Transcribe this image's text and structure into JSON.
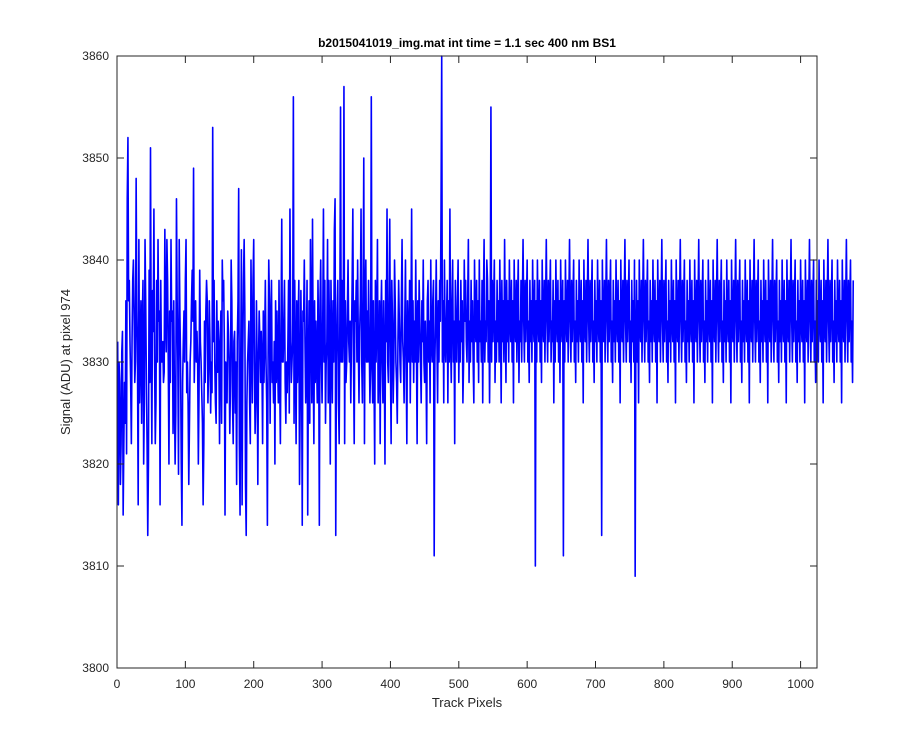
{
  "chart_data": {
    "type": "line",
    "title": "b2015041019_img.mat int time = 1.1 sec  400 nm BS1",
    "xlabel": "Track Pixels",
    "ylabel": "Signal (ADU) at pixel 974",
    "xlim": [
      0,
      1024
    ],
    "ylim": [
      3800,
      3860
    ],
    "xticks": [
      0,
      100,
      200,
      300,
      400,
      500,
      600,
      700,
      800,
      900,
      1000
    ],
    "yticks": [
      3800,
      3810,
      3820,
      3830,
      3840,
      3850,
      3860
    ],
    "grid": false,
    "series": [
      {
        "color": "#0000ff",
        "x_start": 1,
        "x_step": 1,
        "values": [
          3832,
          3816,
          3830,
          3828,
          3818,
          3822,
          3831,
          3833,
          3815,
          3822,
          3828,
          3824,
          3836,
          3821,
          3846,
          3852,
          3836,
          3838,
          3832,
          3828,
          3822,
          3832,
          3838,
          3840,
          3835,
          3828,
          3830,
          3848,
          3835,
          3830,
          3816,
          3842,
          3826,
          3831,
          3836,
          3824,
          3834,
          3838,
          3820,
          3826,
          3842,
          3836,
          3828,
          3822,
          3813,
          3820,
          3839,
          3828,
          3851,
          3832,
          3822,
          3837,
          3833,
          3845,
          3830,
          3822,
          3826,
          3838,
          3830,
          3842,
          3834,
          3835,
          3816,
          3838,
          3830,
          3830,
          3832,
          3828,
          3829,
          3843,
          3834,
          3831,
          3842,
          3838,
          3830,
          3820,
          3835,
          3828,
          3842,
          3834,
          3835,
          3823,
          3836,
          3827,
          3820,
          3825,
          3846,
          3836,
          3830,
          3819,
          3842,
          3835,
          3830,
          3820,
          3814,
          3828,
          3832,
          3835,
          3830,
          3838,
          3842,
          3827,
          3830,
          3826,
          3818,
          3824,
          3830,
          3832,
          3836,
          3839,
          3834,
          3849,
          3828,
          3832,
          3836,
          3830,
          3833,
          3830,
          3820,
          3827,
          3839,
          3832,
          3830,
          3827,
          3824,
          3816,
          3822,
          3834,
          3828,
          3835,
          3838,
          3836,
          3826,
          3829,
          3836,
          3832,
          3825,
          3830,
          3827,
          3853,
          3832,
          3838,
          3830,
          3826,
          3824,
          3836,
          3829,
          3834,
          3831,
          3822,
          3832,
          3835,
          3824,
          3840,
          3836,
          3838,
          3832,
          3815,
          3830,
          3828,
          3826,
          3835,
          3833,
          3830,
          3823,
          3828,
          3840,
          3836,
          3826,
          3822,
          3832,
          3833,
          3825,
          3830,
          3818,
          3832,
          3836,
          3847,
          3822,
          3815,
          3830,
          3841,
          3816,
          3830,
          3838,
          3842,
          3835,
          3818,
          3813,
          3826,
          3830,
          3832,
          3834,
          3826,
          3822,
          3840,
          3832,
          3826,
          3838,
          3842,
          3830,
          3823,
          3826,
          3836,
          3830,
          3818,
          3830,
          3835,
          3832,
          3828,
          3833,
          3830,
          3822,
          3835,
          3828,
          3832,
          3838,
          3830,
          3826,
          3814,
          3830,
          3840,
          3836,
          3824,
          3834,
          3838,
          3828,
          3830,
          3826,
          3832,
          3820,
          3836,
          3828,
          3835,
          3830,
          3826,
          3838,
          3828,
          3822,
          3834,
          3844,
          3830,
          3830,
          3834,
          3838,
          3828,
          3824,
          3830,
          3827,
          3832,
          3838,
          3825,
          3845,
          3834,
          3828,
          3830,
          3832,
          3856,
          3824,
          3838,
          3830,
          3822,
          3836,
          3828,
          3834,
          3838,
          3818,
          3826,
          3837,
          3830,
          3814,
          3835,
          3834,
          3840,
          3832,
          3826,
          3830,
          3838,
          3815,
          3830,
          3836,
          3824,
          3842,
          3834,
          3826,
          3844,
          3830,
          3822,
          3836,
          3828,
          3834,
          3830,
          3826,
          3838,
          3832,
          3814,
          3836,
          3840,
          3830,
          3826,
          3834,
          3845,
          3830,
          3838,
          3824,
          3830,
          3832,
          3842,
          3826,
          3838,
          3832,
          3820,
          3838,
          3832,
          3826,
          3836,
          3830,
          3843,
          3846,
          3813,
          3830,
          3835,
          3838,
          3826,
          3822,
          3834,
          3855,
          3830,
          3838,
          3830,
          3834,
          3857,
          3822,
          3836,
          3828,
          3830,
          3835,
          3840,
          3832,
          3830,
          3834,
          3826,
          3832,
          3838,
          3845,
          3830,
          3822,
          3836,
          3834,
          3838,
          3830,
          3840,
          3832,
          3826,
          3833,
          3836,
          3845,
          3830,
          3826,
          3836,
          3850,
          3822,
          3836,
          3840,
          3830,
          3835,
          3830,
          3838,
          3832,
          3826,
          3830,
          3856,
          3830,
          3826,
          3836,
          3828,
          3820,
          3838,
          3830,
          3834,
          3842,
          3826,
          3830,
          3836,
          3822,
          3834,
          3838,
          3830,
          3826,
          3836,
          3830,
          3820,
          3838,
          3832,
          3845,
          3830,
          3828,
          3836,
          3844,
          3830,
          3822,
          3838,
          3834,
          3826,
          3830,
          3840,
          3836,
          3830,
          3828,
          3824,
          3832,
          3838,
          3834,
          3830,
          3828,
          3836,
          3842,
          3832,
          3830,
          3826,
          3834,
          3840,
          3830,
          3822,
          3836,
          3832,
          3830,
          3838,
          3826,
          3834,
          3845,
          3830,
          3836,
          3828,
          3834,
          3830,
          3840,
          3832,
          3822,
          3836,
          3830,
          3838,
          3834,
          3830,
          3826,
          3836,
          3832,
          3840,
          3830,
          3828,
          3834,
          3830,
          3822,
          3836,
          3838,
          3830,
          3834,
          3826,
          3840,
          3832,
          3830,
          3836,
          3838,
          3811,
          3830,
          3834,
          3840,
          3832,
          3826,
          3836,
          3830,
          3838,
          3834,
          3845,
          3860,
          3830,
          3836,
          3826,
          3840,
          3832,
          3830,
          3834,
          3838,
          3826,
          3836,
          3830,
          3845,
          3832,
          3828,
          3836,
          3840,
          3830,
          3834,
          3822,
          3838,
          3832,
          3830,
          3836,
          3840,
          3828,
          3834,
          3830,
          3838,
          3832,
          3836,
          3826,
          3830,
          3840,
          3834,
          3838,
          3832,
          3830,
          3836,
          3842,
          3828,
          3834,
          3830,
          3838,
          3832,
          3836,
          3830,
          3826,
          3840,
          3834,
          3832,
          3838,
          3830,
          3836,
          3828,
          3840,
          3832,
          3834,
          3830,
          3838,
          3826,
          3836,
          3842,
          3830,
          3834,
          3832,
          3840,
          3838,
          3830,
          3836,
          3826,
          3834,
          3855,
          3830,
          3838,
          3832,
          3836,
          3840,
          3828,
          3834,
          3830,
          3838,
          3832,
          3836,
          3830,
          3840,
          3834,
          3826,
          3838,
          3832,
          3836,
          3830,
          3842,
          3834,
          3828,
          3838,
          3832,
          3836,
          3830,
          3840,
          3834,
          3832,
          3838,
          3830,
          3836,
          3826,
          3840,
          3834,
          3832,
          3838,
          3830,
          3836,
          3840,
          3828,
          3834,
          3832,
          3838,
          3830,
          3836,
          3842,
          3834,
          3830,
          3838,
          3832,
          3836,
          3840,
          3830,
          3834,
          3828,
          3838,
          3832,
          3836,
          3830,
          3840,
          3834,
          3832,
          3838,
          3810,
          3836,
          3830,
          3840,
          3834,
          3832,
          3838,
          3830,
          3836,
          3828,
          3840,
          3834,
          3832,
          3838,
          3830,
          3836,
          3842,
          3834,
          3830,
          3838,
          3832,
          3836,
          3840,
          3830,
          3834,
          3832,
          3838,
          3826,
          3836,
          3830,
          3840,
          3834,
          3832,
          3838,
          3830,
          3836,
          3828,
          3840,
          3834,
          3832,
          3838,
          3811,
          3836,
          3830,
          3840,
          3834,
          3832,
          3838,
          3830,
          3836,
          3842,
          3834,
          3830,
          3838,
          3832,
          3836,
          3840,
          3830,
          3834,
          3828,
          3838,
          3832,
          3836,
          3830,
          3840,
          3834,
          3832,
          3838,
          3830,
          3836,
          3826,
          3840,
          3834,
          3832,
          3838,
          3830,
          3836,
          3842,
          3834,
          3830,
          3838,
          3832,
          3836,
          3840,
          3830,
          3834,
          3828,
          3838,
          3832,
          3836,
          3830,
          3840,
          3834,
          3832,
          3838,
          3830,
          3836,
          3813,
          3840,
          3834,
          3832,
          3838,
          3830,
          3836,
          3842,
          3834,
          3830,
          3838,
          3832,
          3836,
          3840,
          3830,
          3834,
          3828,
          3838,
          3832,
          3836,
          3830,
          3840,
          3834,
          3832,
          3838,
          3830,
          3836,
          3826,
          3840,
          3834,
          3832,
          3838,
          3830,
          3836,
          3842,
          3834,
          3830,
          3838,
          3832,
          3836,
          3840,
          3830,
          3834,
          3828,
          3838,
          3832,
          3836,
          3830,
          3840,
          3809,
          3832,
          3838,
          3830,
          3836,
          3826,
          3840,
          3834,
          3832,
          3838,
          3830,
          3836,
          3842,
          3834,
          3830,
          3838,
          3832,
          3836,
          3840,
          3830,
          3834,
          3828,
          3838,
          3832,
          3836,
          3830,
          3840,
          3834,
          3832,
          3838,
          3830,
          3836,
          3826,
          3840,
          3834,
          3832,
          3838,
          3830,
          3836,
          3842,
          3834,
          3830,
          3838,
          3832,
          3836,
          3840,
          3830,
          3834,
          3828,
          3838,
          3832,
          3836,
          3830,
          3840,
          3834,
          3832,
          3838,
          3830,
          3836,
          3826,
          3840,
          3834,
          3832,
          3838,
          3830,
          3836,
          3842,
          3834,
          3830,
          3838,
          3832,
          3836,
          3840,
          3830,
          3834,
          3828,
          3838,
          3832,
          3836,
          3830,
          3840,
          3834,
          3832,
          3838,
          3830,
          3836,
          3826,
          3840,
          3834,
          3832,
          3838,
          3830,
          3836,
          3842,
          3834,
          3830,
          3838,
          3832,
          3836,
          3840,
          3830,
          3834,
          3828,
          3838,
          3832,
          3836,
          3830,
          3840,
          3834,
          3832,
          3838,
          3830,
          3836,
          3826,
          3840,
          3834,
          3832,
          3838,
          3830,
          3836,
          3842,
          3834,
          3830,
          3838,
          3832,
          3836,
          3840,
          3830,
          3834,
          3828,
          3838,
          3832,
          3836,
          3830,
          3840,
          3834,
          3832,
          3838,
          3830,
          3836,
          3826,
          3840,
          3834,
          3832,
          3838,
          3830,
          3836,
          3842,
          3834,
          3830,
          3838,
          3832,
          3836,
          3840,
          3830,
          3834,
          3828,
          3838,
          3832,
          3836,
          3830,
          3840,
          3834,
          3832,
          3838,
          3830,
          3836,
          3826,
          3840,
          3834,
          3832,
          3838,
          3830,
          3836,
          3842,
          3834,
          3830,
          3838,
          3832,
          3836,
          3840,
          3830,
          3834,
          3828,
          3838,
          3832,
          3836,
          3830,
          3840,
          3834,
          3832,
          3838,
          3830,
          3836,
          3826,
          3840,
          3834,
          3832,
          3838,
          3830,
          3836,
          3842,
          3834,
          3830,
          3838,
          3832,
          3836,
          3840,
          3830,
          3834,
          3828,
          3838,
          3832,
          3836,
          3830,
          3840,
          3834,
          3832,
          3838,
          3830,
          3836,
          3826,
          3840,
          3834,
          3832,
          3838,
          3830,
          3836,
          3842,
          3834,
          3830,
          3838,
          3832,
          3836,
          3840,
          3830,
          3834,
          3828,
          3838,
          3832,
          3836,
          3830,
          3840,
          3834,
          3832,
          3838,
          3830,
          3836,
          3826,
          3840,
          3834,
          3832,
          3838,
          3830,
          3836,
          3842,
          3834,
          3830,
          3838,
          3832,
          3836,
          3840,
          3830,
          3834,
          3828,
          3838,
          3832,
          3836,
          3830,
          3840,
          3834,
          3832,
          3838,
          3830,
          3836,
          3826,
          3840,
          3834,
          3832,
          3838,
          3830,
          3836,
          3842,
          3834,
          3830,
          3838,
          3832,
          3836,
          3840,
          3830,
          3834,
          3828,
          3838,
          3832,
          3836,
          3830,
          3840,
          3834,
          3832,
          3838,
          3830,
          3836,
          3826,
          3840,
          3834,
          3832,
          3838,
          3830,
          3836,
          3842,
          3834,
          3830,
          3838,
          3832,
          3836,
          3840,
          3830,
          3834,
          3828,
          3838
        ]
      }
    ]
  }
}
